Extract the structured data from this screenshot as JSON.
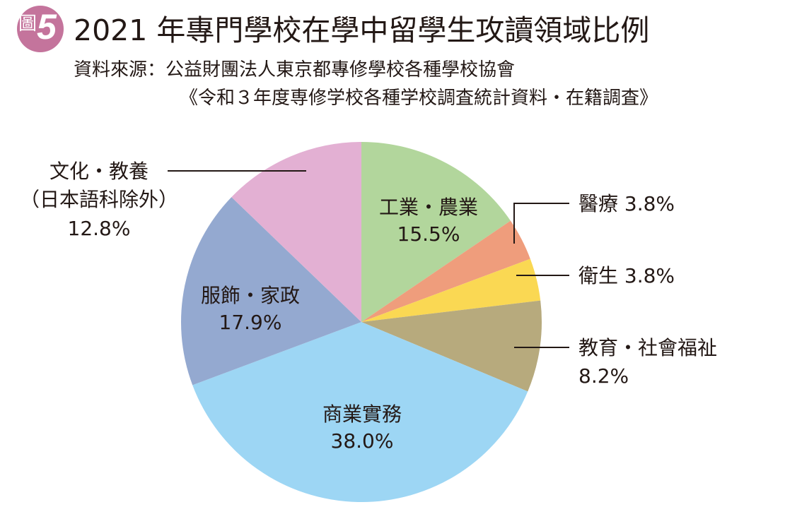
{
  "header": {
    "badge_label": "圖",
    "badge_number": "5",
    "title": "2021 年專門學校在學中留學生攻讀領域比例",
    "source_line1": "資料來源：公益財團法人東京都專修學校各種學校協會",
    "source_line2": "《令和３年度専修学校各種学校調査統計資料・在籍調査》"
  },
  "chart_data": {
    "type": "pie",
    "start_angle_deg": 0,
    "direction": "clockwise",
    "slices": [
      {
        "label": "工業・農業",
        "value": 15.5,
        "value_label": "15.5%",
        "color": "#b2d69c"
      },
      {
        "label": "醫療",
        "value": 3.8,
        "value_label": "3.8%",
        "color": "#ef9d7c"
      },
      {
        "label": "衛生",
        "value": 3.8,
        "value_label": "3.8%",
        "color": "#fad853"
      },
      {
        "label": "教育・社會福祉",
        "value": 8.2,
        "value_label": "8.2%",
        "color": "#b7aa7d"
      },
      {
        "label": "商業實務",
        "value": 38.0,
        "value_label": "38.0%",
        "color": "#9dd6f4"
      },
      {
        "label": "服飾・家政",
        "value": 17.9,
        "value_label": "17.9%",
        "color": "#94a9d0"
      },
      {
        "label": "文化・教養",
        "sublabel": "（日本語科除外）",
        "value": 12.8,
        "value_label": "12.8%",
        "color": "#e3b0d3"
      }
    ]
  }
}
